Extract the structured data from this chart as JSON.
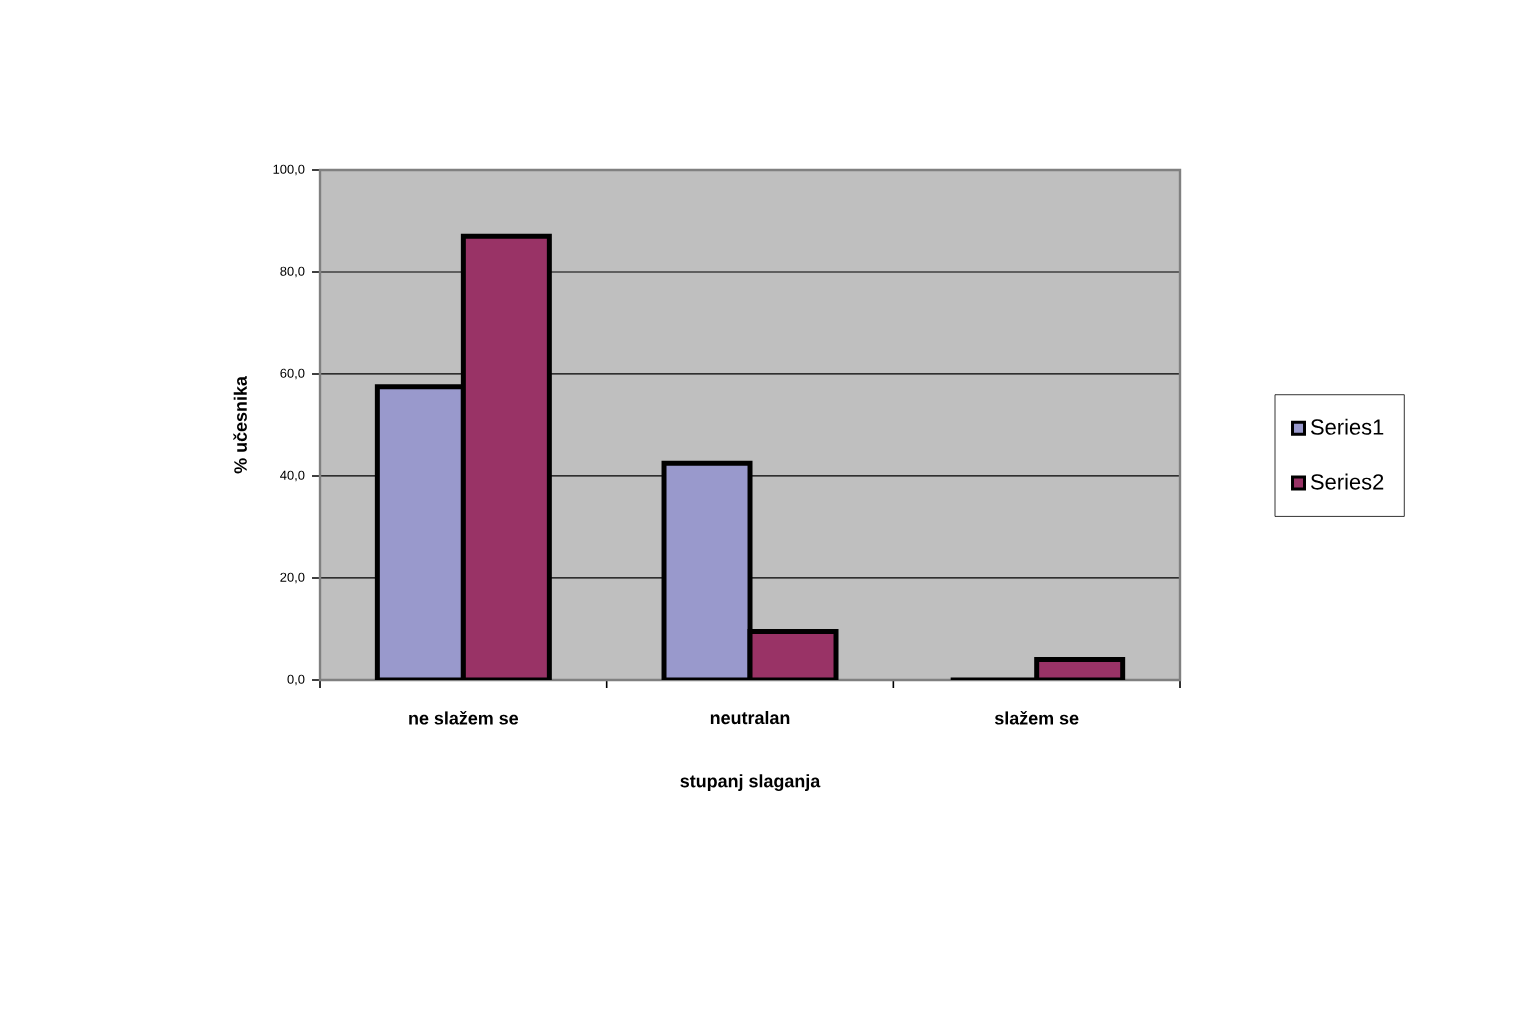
{
  "chart_data": {
    "type": "bar",
    "xlabel": "stupanj slaganja",
    "ylabel": "% učesnika",
    "categories": [
      "ne slažem se",
      "neutralan",
      "slažem se"
    ],
    "series": [
      {
        "name": "Series1",
        "color": "#9999cc",
        "values": [
          57.5,
          42.5,
          0
        ]
      },
      {
        "name": "Series2",
        "color": "#993366",
        "values": [
          87,
          9.5,
          4
        ]
      }
    ],
    "ylim": [
      0,
      100
    ],
    "yticks": [
      {
        "value": 0,
        "label": "0,0"
      },
      {
        "value": 20,
        "label": "20,0"
      },
      {
        "value": 40,
        "label": "40,0"
      },
      {
        "value": 60,
        "label": "60,0"
      },
      {
        "value": 80,
        "label": "80,0"
      },
      {
        "value": 100,
        "label": "100,0"
      }
    ],
    "grid": "y",
    "legend": "right"
  }
}
